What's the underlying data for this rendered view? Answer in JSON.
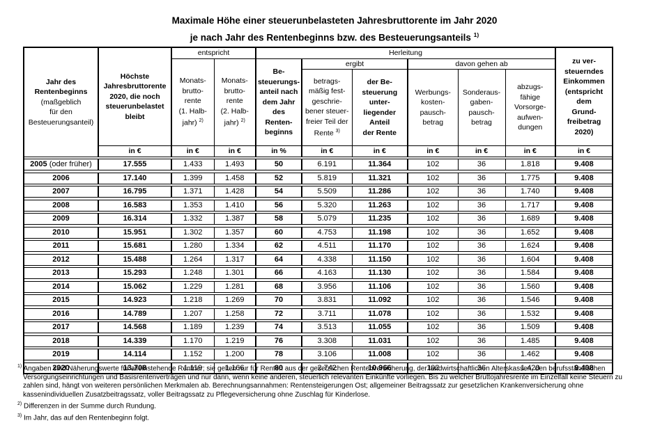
{
  "title": {
    "line1": "Maximale Höhe einer steuerunbelasteten Jahresbruttorente im Jahr 2020",
    "line2": "je nach Jahr des Rentenbeginns bzw. des Besteuerungsanteils",
    "line2_sup": "1)"
  },
  "table": {
    "span_labels": {
      "entspricht": "entspricht",
      "herleitung": "Herleitung",
      "ergibt": "ergibt",
      "davon": "davon gehen ab"
    },
    "headers": {
      "col1_bold": [
        "Jahr des",
        "Rentenbeginns"
      ],
      "col1_rest": [
        "(maßgeblich",
        "für den",
        "Besteuerungsanteil)"
      ],
      "col2": [
        "Höchste",
        "Jahresbruttorente",
        "2020, die noch",
        "steuerunbelastet",
        "bleibt"
      ],
      "col3": {
        "lines": [
          "Monats-",
          "brutto-",
          "rente",
          "(1. Halb-",
          "jahr)"
        ],
        "sup": "2)"
      },
      "col4": {
        "lines": [
          "Monats-",
          "brutto-",
          "rente",
          "(2. Halb-",
          "jahr)"
        ],
        "sup": "2)"
      },
      "col5": [
        "Be-",
        "steuerungs-",
        "anteil nach",
        "dem Jahr des",
        "Renten-",
        "beginns"
      ],
      "col6": {
        "lines": [
          "betrags-",
          "mäßig fest-",
          "geschrie-",
          "bener steuer-",
          "freier Teil der",
          "Rente"
        ],
        "sup": "3)"
      },
      "col7": [
        "der Be-",
        "steuerung unter-",
        "liegender Anteil",
        "der Rente"
      ],
      "col8": [
        "Werbungs-",
        "kosten-",
        "pausch-",
        "betrag"
      ],
      "col9": [
        "Sonderaus-",
        "gaben-",
        "pausch-",
        "betrag"
      ],
      "col10": [
        "abzugs-",
        "fähige",
        "Vorsorge-",
        "aufwen-",
        "dungen"
      ],
      "col11": [
        "zu ver-",
        "steuerndes",
        "Einkommen",
        "(entspricht dem",
        "Grund-",
        "freibetrag 2020)"
      ]
    },
    "units": [
      "in €",
      "in €",
      "in €",
      "in %",
      "in €",
      "in €",
      "in €",
      "in €",
      "in €",
      "in €"
    ],
    "rows": [
      {
        "jahr": "2005",
        "jahr_zusatz": "(oder früher)",
        "werte": [
          "17.555",
          "1.433",
          "1.493",
          "50",
          "6.191",
          "11.364",
          "102",
          "36",
          "1.818",
          "9.408"
        ]
      },
      {
        "jahr": "2006",
        "jahr_zusatz": "",
        "werte": [
          "17.140",
          "1.399",
          "1.458",
          "52",
          "5.819",
          "11.321",
          "102",
          "36",
          "1.775",
          "9.408"
        ]
      },
      {
        "jahr": "2007",
        "jahr_zusatz": "",
        "werte": [
          "16.795",
          "1.371",
          "1.428",
          "54",
          "5.509",
          "11.286",
          "102",
          "36",
          "1.740",
          "9.408"
        ]
      },
      {
        "jahr": "2008",
        "jahr_zusatz": "",
        "werte": [
          "16.583",
          "1.353",
          "1.410",
          "56",
          "5.320",
          "11.263",
          "102",
          "36",
          "1.717",
          "9.408"
        ]
      },
      {
        "jahr": "2009",
        "jahr_zusatz": "",
        "werte": [
          "16.314",
          "1.332",
          "1.387",
          "58",
          "5.079",
          "11.235",
          "102",
          "36",
          "1.689",
          "9.408"
        ]
      },
      {
        "jahr": "2010",
        "jahr_zusatz": "",
        "werte": [
          "15.951",
          "1.302",
          "1.357",
          "60",
          "4.753",
          "11.198",
          "102",
          "36",
          "1.652",
          "9.408"
        ]
      },
      {
        "jahr": "2011",
        "jahr_zusatz": "",
        "werte": [
          "15.681",
          "1.280",
          "1.334",
          "62",
          "4.511",
          "11.170",
          "102",
          "36",
          "1.624",
          "9.408"
        ]
      },
      {
        "jahr": "2012",
        "jahr_zusatz": "",
        "werte": [
          "15.488",
          "1.264",
          "1.317",
          "64",
          "4.338",
          "11.150",
          "102",
          "36",
          "1.604",
          "9.408"
        ]
      },
      {
        "jahr": "2013",
        "jahr_zusatz": "",
        "werte": [
          "15.293",
          "1.248",
          "1.301",
          "66",
          "4.163",
          "11.130",
          "102",
          "36",
          "1.584",
          "9.408"
        ]
      },
      {
        "jahr": "2014",
        "jahr_zusatz": "",
        "werte": [
          "15.062",
          "1.229",
          "1.281",
          "68",
          "3.956",
          "11.106",
          "102",
          "36",
          "1.560",
          "9.408"
        ]
      },
      {
        "jahr": "2015",
        "jahr_zusatz": "",
        "werte": [
          "14.923",
          "1.218",
          "1.269",
          "70",
          "3.831",
          "11.092",
          "102",
          "36",
          "1.546",
          "9.408"
        ]
      },
      {
        "jahr": "2016",
        "jahr_zusatz": "",
        "werte": [
          "14.789",
          "1.207",
          "1.258",
          "72",
          "3.711",
          "11.078",
          "102",
          "36",
          "1.532",
          "9.408"
        ]
      },
      {
        "jahr": "2017",
        "jahr_zusatz": "",
        "werte": [
          "14.568",
          "1.189",
          "1.239",
          "74",
          "3.513",
          "11.055",
          "102",
          "36",
          "1.509",
          "9.408"
        ]
      },
      {
        "jahr": "2018",
        "jahr_zusatz": "",
        "werte": [
          "14.339",
          "1.170",
          "1.219",
          "76",
          "3.308",
          "11.031",
          "102",
          "36",
          "1.485",
          "9.408"
        ]
      },
      {
        "jahr": "2019",
        "jahr_zusatz": "",
        "werte": [
          "14.114",
          "1.152",
          "1.200",
          "78",
          "3.106",
          "11.008",
          "102",
          "36",
          "1.462",
          "9.408"
        ]
      },
      {
        "jahr": "2020",
        "jahr_zusatz": "",
        "werte": [
          "13.708",
          "1.119",
          "1.166",
          "80",
          "2.742",
          "10.966",
          "102",
          "36",
          "1.420",
          "9.408"
        ]
      }
    ]
  },
  "footnotes": [
    {
      "marker": "1)",
      "text": "Angaben sind Näherungswerte für alleinstehende Rentner; sie gelten nur für Renten aus der gesetzlichen Rentenversicherung, der landwirtschaftlichen Alterskassen, den berufsständischen Versorgungseinrichtungen und Basisrentenverträgen und nur dann, wenn keine anderen, steuerlich relevanten Einkünfte vorliegen. Bis zu welcher Bruttojahresrente im Einzelfall keine Steuern zu zahlen sind, hängt von weiteren persönlichen Merkmalen ab. Berechnungsannahmen: Rentensteigerungen Ost; allgemeiner Beitragssatz zur gesetzlichen Krankenversicherung ohne kassenindividuellen Zusatzbeitragssatz, voller Beitragssatz zu Pflegeversicherung ohne Zuschlag für Kinderlose."
    },
    {
      "marker": "2)",
      "text": "Differenzen in der Summe durch Rundung."
    },
    {
      "marker": "3)",
      "text": "Im Jahr, das auf den Rentenbeginn folgt."
    }
  ]
}
